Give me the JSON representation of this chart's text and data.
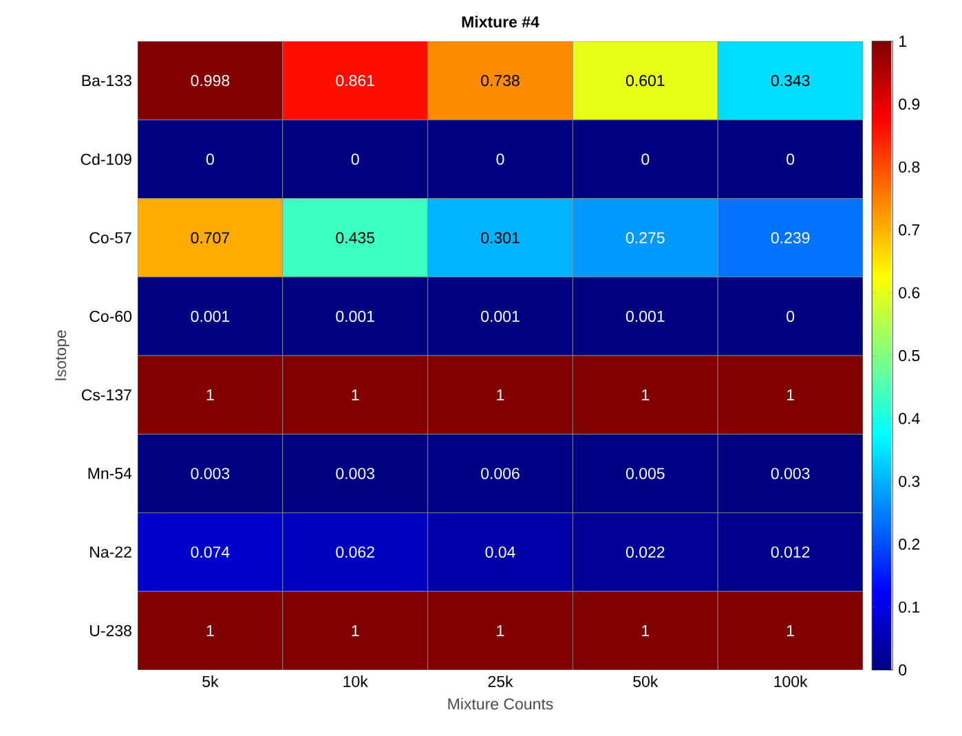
{
  "chart_data": {
    "type": "heatmap",
    "title": "Mixture #4",
    "xlabel": "Mixture Counts",
    "ylabel": "Isotope",
    "categories": [
      "5k",
      "10k",
      "25k",
      "50k",
      "100k"
    ],
    "y_categories": [
      "Ba-133",
      "Cd-109",
      "Co-57",
      "Co-60",
      "Cs-137",
      "Mn-54",
      "Na-22",
      "U-238"
    ],
    "cells": [
      [
        0.998,
        0.861,
        0.738,
        0.601,
        0.343
      ],
      [
        0,
        0,
        0,
        0,
        0
      ],
      [
        0.707,
        0.435,
        0.301,
        0.275,
        0.239
      ],
      [
        0.001,
        0.001,
        0.001,
        0.001,
        0
      ],
      [
        1,
        1,
        1,
        1,
        1
      ],
      [
        0.003,
        0.003,
        0.006,
        0.005,
        0.003
      ],
      [
        0.074,
        0.062,
        0.04,
        0.022,
        0.012
      ],
      [
        1,
        1,
        1,
        1,
        1
      ]
    ],
    "data_labels": true,
    "clim": [
      0,
      1
    ],
    "cticks": [
      0,
      0.1,
      0.2,
      0.3,
      0.4,
      0.5,
      0.6,
      0.7,
      0.8,
      0.9,
      1
    ]
  }
}
